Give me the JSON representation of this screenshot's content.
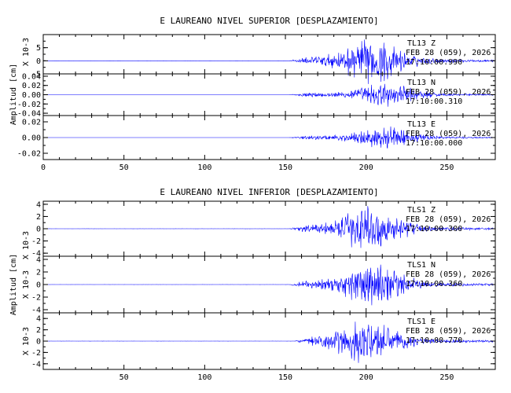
{
  "colors": {
    "trace": "#0000ff",
    "axes": "#000000",
    "background": "#ffffff"
  },
  "chart_data": [
    {
      "type": "line",
      "title": "E LAUREANO NIVEL SUPERIOR [DESPLAZAMIENTO]",
      "ylabel": "Amplitud [cm]",
      "xlim": [
        0,
        280
      ],
      "x_ticks": [
        "0",
        "50",
        "100",
        "150",
        "200",
        "250"
      ],
      "x_tick_values": [
        0,
        50,
        100,
        150,
        200,
        250
      ],
      "panels": [
        {
          "name": "TL13 Z",
          "station": "TL13",
          "component": "Z",
          "date": "FEB 28 (059), 2026",
          "time": "17:10:00.990",
          "scale": "X 10-3",
          "ylim": [
            -5,
            10
          ],
          "y_ticks": [
            "5",
            "0",
            "-5"
          ],
          "y_tick_values": [
            5,
            0,
            -5
          ],
          "onset": 152,
          "peak_x": 203,
          "peak_amp": 9.5
        },
        {
          "name": "TL13 N",
          "station": "TL13",
          "component": "N",
          "date": "FEB 28 (059), 2026",
          "time": "17:10:00.310",
          "scale": "",
          "ylim": [
            -0.045,
            0.045
          ],
          "y_ticks": [
            "0.04",
            "0.02",
            "0.00",
            "-0.02",
            "-0.04"
          ],
          "y_tick_values": [
            0.04,
            0.02,
            0,
            -0.02,
            -0.04
          ],
          "onset": 152,
          "peak_x": 212,
          "peak_amp": 0.028
        },
        {
          "name": "TL13 E",
          "station": "TL13",
          "component": "E",
          "date": "FEB 28 (059), 2026",
          "time": "17:10:00.000",
          "scale": "",
          "ylim": [
            -0.028,
            0.028
          ],
          "y_ticks": [
            "0.02",
            "0.00",
            "-0.02"
          ],
          "y_tick_values": [
            0.02,
            0,
            -0.02
          ],
          "onset": 152,
          "peak_x": 210,
          "peak_amp": 0.016
        }
      ]
    },
    {
      "type": "line",
      "title": "E LAUREANO NIVEL INFERIOR [DESPLAZAMIENTO]",
      "ylabel": "Amplitud [cm]",
      "xlim": [
        0,
        280
      ],
      "x_ticks": [
        "50",
        "100",
        "150",
        "200",
        "250"
      ],
      "x_tick_values": [
        50,
        100,
        150,
        200,
        250
      ],
      "panels": [
        {
          "name": "TLS1 Z",
          "station": "TLS1",
          "component": "Z",
          "date": "FEB 28 (059), 2026",
          "time": "17:10:00.300",
          "scale": "X 10-3",
          "ylim": [
            -4.5,
            4.5
          ],
          "y_ticks": [
            "4",
            "2",
            "0",
            "-2",
            "-4"
          ],
          "y_tick_values": [
            4,
            2,
            0,
            -2,
            -4
          ],
          "onset": 152,
          "peak_x": 202,
          "peak_amp": 4.2
        },
        {
          "name": "TLS1 N",
          "station": "TLS1",
          "component": "N",
          "date": "FEB 28 (059), 2026",
          "time": "17:10:00.360",
          "scale": "X 10-3",
          "ylim": [
            -4.5,
            4.5
          ],
          "y_ticks": [
            "4",
            "2",
            "0",
            "-2",
            "-4"
          ],
          "y_tick_values": [
            4,
            2,
            0,
            -2,
            -4
          ],
          "onset": 152,
          "peak_x": 203,
          "peak_amp": 4.0
        },
        {
          "name": "TLS1 E",
          "station": "TLS1",
          "component": "E",
          "date": "FEB 28 (059), 2026",
          "time": "17:10:00.770",
          "scale": "X 10-3",
          "ylim": [
            -5,
            5
          ],
          "y_ticks": [
            "4",
            "2",
            "0",
            "-2",
            "-4"
          ],
          "y_tick_values": [
            4,
            2,
            0,
            -2,
            -4
          ],
          "onset": 155,
          "peak_x": 200,
          "peak_amp": 4.5
        }
      ]
    }
  ]
}
